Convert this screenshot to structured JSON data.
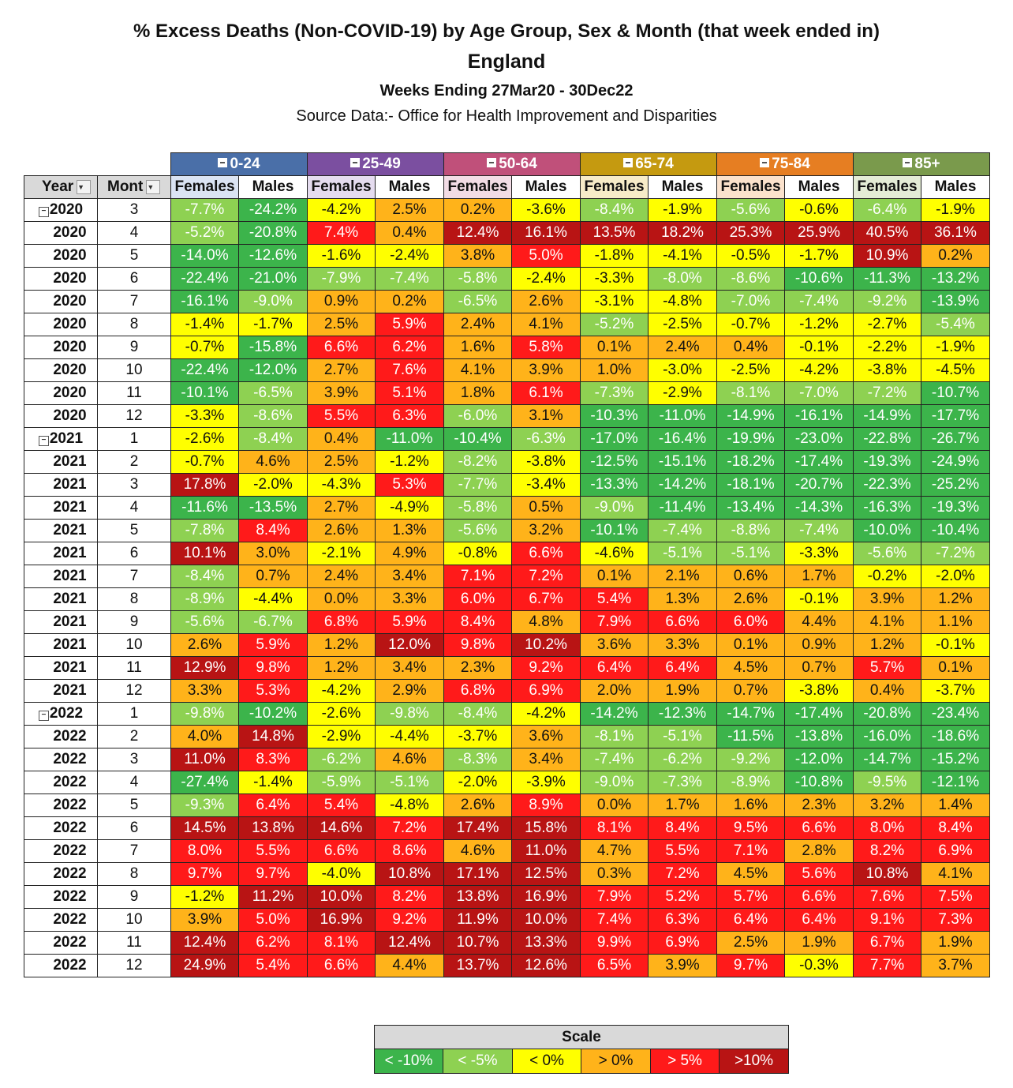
{
  "title": "% Excess Deaths (Non-COVID-19) by Age Group, Sex & Month (that week ended in)",
  "subtitle": "England",
  "period": "Weeks Ending 27Mar20 - 30Dec22",
  "source": "Source Data:- Office for Health Improvement and Disparities",
  "headers": {
    "year": "Year",
    "month": "Mont",
    "females": "Females",
    "males": "Males",
    "age_groups": [
      {
        "label": "0-24",
        "color": "#4a6fa8"
      },
      {
        "label": "25-49",
        "color": "#7b4fa0"
      },
      {
        "label": "50-64",
        "color": "#c0507a"
      },
      {
        "label": "65-74",
        "color": "#c59a10"
      },
      {
        "label": "75-84",
        "color": "#e67e22"
      },
      {
        "label": "85+",
        "color": "#7a9a4c"
      }
    ]
  },
  "scale": {
    "title": "Scale",
    "bins": [
      {
        "label": "< -10%",
        "color": "#3cb44b",
        "text_color": "#ffffff"
      },
      {
        "label": "< -5%",
        "color": "#8ed152",
        "text_color": "#ffffff"
      },
      {
        "label": "< 0%",
        "color": "#ffff00",
        "text_color": "#111111"
      },
      {
        "label": "> 0%",
        "color": "#ffb31a",
        "text_color": "#111111"
      },
      {
        "label": "> 5%",
        "color": "#ff1a1a",
        "text_color": "#ffffff"
      },
      {
        "label": ">10%",
        "color": "#b81414",
        "text_color": "#ffffff"
      }
    ]
  },
  "chart_data": {
    "type": "table",
    "title": "% Excess Deaths (Non-COVID-19) by Age Group, Sex & Month (that week ended in)",
    "columns": [
      "0-24 Females",
      "0-24 Males",
      "25-49 Females",
      "25-49 Males",
      "50-64 Females",
      "50-64 Males",
      "65-74 Females",
      "65-74 Males",
      "75-84 Females",
      "75-84 Males",
      "85+ Females",
      "85+ Males"
    ],
    "rows": [
      {
        "year": "2020",
        "month": "3",
        "group_start": true,
        "values": [
          "-7.7%",
          "-24.2%",
          "-4.2%",
          "2.5%",
          "0.2%",
          "-3.6%",
          "-8.4%",
          "-1.9%",
          "-5.6%",
          "-0.6%",
          "-6.4%",
          "-1.9%"
        ]
      },
      {
        "year": "2020",
        "month": "4",
        "values": [
          "-5.2%",
          "-20.8%",
          "7.4%",
          "0.4%",
          "12.4%",
          "16.1%",
          "13.5%",
          "18.2%",
          "25.3%",
          "25.9%",
          "40.5%",
          "36.1%"
        ]
      },
      {
        "year": "2020",
        "month": "5",
        "values": [
          "-14.0%",
          "-12.6%",
          "-1.6%",
          "-2.4%",
          "3.8%",
          "5.0%",
          "-1.8%",
          "-4.1%",
          "-0.5%",
          "-1.7%",
          "10.9%",
          "0.2%"
        ]
      },
      {
        "year": "2020",
        "month": "6",
        "values": [
          "-22.4%",
          "-21.0%",
          "-7.9%",
          "-7.4%",
          "-5.8%",
          "-2.4%",
          "-3.3%",
          "-8.0%",
          "-8.6%",
          "-10.6%",
          "-11.3%",
          "-13.2%"
        ]
      },
      {
        "year": "2020",
        "month": "7",
        "values": [
          "-16.1%",
          "-9.0%",
          "0.9%",
          "0.2%",
          "-6.5%",
          "2.6%",
          "-3.1%",
          "-4.8%",
          "-7.0%",
          "-7.4%",
          "-9.2%",
          "-13.9%"
        ]
      },
      {
        "year": "2020",
        "month": "8",
        "values": [
          "-1.4%",
          "-1.7%",
          "2.5%",
          "5.9%",
          "2.4%",
          "4.1%",
          "-5.2%",
          "-2.5%",
          "-0.7%",
          "-1.2%",
          "-2.7%",
          "-5.4%"
        ]
      },
      {
        "year": "2020",
        "month": "9",
        "values": [
          "-0.7%",
          "-15.8%",
          "6.6%",
          "6.2%",
          "1.6%",
          "5.8%",
          "0.1%",
          "2.4%",
          "0.4%",
          "-0.1%",
          "-2.2%",
          "-1.9%"
        ]
      },
      {
        "year": "2020",
        "month": "10",
        "values": [
          "-22.4%",
          "-12.0%",
          "2.7%",
          "7.6%",
          "4.1%",
          "3.9%",
          "1.0%",
          "-3.0%",
          "-2.5%",
          "-4.2%",
          "-3.8%",
          "-4.5%"
        ]
      },
      {
        "year": "2020",
        "month": "11",
        "values": [
          "-10.1%",
          "-6.5%",
          "3.9%",
          "5.1%",
          "1.8%",
          "6.1%",
          "-7.3%",
          "-2.9%",
          "-8.1%",
          "-7.0%",
          "-7.2%",
          "-10.7%"
        ]
      },
      {
        "year": "2020",
        "month": "12",
        "values": [
          "-3.3%",
          "-8.6%",
          "5.5%",
          "6.3%",
          "-6.0%",
          "3.1%",
          "-10.3%",
          "-11.0%",
          "-14.9%",
          "-16.1%",
          "-14.9%",
          "-17.7%"
        ]
      },
      {
        "year": "2021",
        "month": "1",
        "group_start": true,
        "values": [
          "-2.6%",
          "-8.4%",
          "0.4%",
          "-11.0%",
          "-10.4%",
          "-6.3%",
          "-17.0%",
          "-16.4%",
          "-19.9%",
          "-23.0%",
          "-22.8%",
          "-26.7%"
        ]
      },
      {
        "year": "2021",
        "month": "2",
        "values": [
          "-0.7%",
          "4.6%",
          "2.5%",
          "-1.2%",
          "-8.2%",
          "-3.8%",
          "-12.5%",
          "-15.1%",
          "-18.2%",
          "-17.4%",
          "-19.3%",
          "-24.9%"
        ]
      },
      {
        "year": "2021",
        "month": "3",
        "values": [
          "17.8%",
          "-2.0%",
          "-4.3%",
          "5.3%",
          "-7.7%",
          "-3.4%",
          "-13.3%",
          "-14.2%",
          "-18.1%",
          "-20.7%",
          "-22.3%",
          "-25.2%"
        ]
      },
      {
        "year": "2021",
        "month": "4",
        "values": [
          "-11.6%",
          "-13.5%",
          "2.7%",
          "-4.9%",
          "-5.8%",
          "0.5%",
          "-9.0%",
          "-11.4%",
          "-13.4%",
          "-14.3%",
          "-16.3%",
          "-19.3%"
        ]
      },
      {
        "year": "2021",
        "month": "5",
        "values": [
          "-7.8%",
          "8.4%",
          "2.6%",
          "1.3%",
          "-5.6%",
          "3.2%",
          "-10.1%",
          "-7.4%",
          "-8.8%",
          "-7.4%",
          "-10.0%",
          "-10.4%"
        ]
      },
      {
        "year": "2021",
        "month": "6",
        "values": [
          "10.1%",
          "3.0%",
          "-2.1%",
          "4.9%",
          "-0.8%",
          "6.6%",
          "-4.6%",
          "-5.1%",
          "-5.1%",
          "-3.3%",
          "-5.6%",
          "-7.2%"
        ]
      },
      {
        "year": "2021",
        "month": "7",
        "values": [
          "-8.4%",
          "0.7%",
          "2.4%",
          "3.4%",
          "7.1%",
          "7.2%",
          "0.1%",
          "2.1%",
          "0.6%",
          "1.7%",
          "-0.2%",
          "-2.0%"
        ]
      },
      {
        "year": "2021",
        "month": "8",
        "values": [
          "-8.9%",
          "-4.4%",
          "0.0%",
          "3.3%",
          "6.0%",
          "6.7%",
          "5.4%",
          "1.3%",
          "2.6%",
          "-0.1%",
          "3.9%",
          "1.2%"
        ]
      },
      {
        "year": "2021",
        "month": "9",
        "values": [
          "-5.6%",
          "-6.7%",
          "6.8%",
          "5.9%",
          "8.4%",
          "4.8%",
          "7.9%",
          "6.6%",
          "6.0%",
          "4.4%",
          "4.1%",
          "1.1%"
        ]
      },
      {
        "year": "2021",
        "month": "10",
        "values": [
          "2.6%",
          "5.9%",
          "1.2%",
          "12.0%",
          "9.8%",
          "10.2%",
          "3.6%",
          "3.3%",
          "0.1%",
          "0.9%",
          "1.2%",
          "-0.1%"
        ]
      },
      {
        "year": "2021",
        "month": "11",
        "values": [
          "12.9%",
          "9.8%",
          "1.2%",
          "3.4%",
          "2.3%",
          "9.2%",
          "6.4%",
          "6.4%",
          "4.5%",
          "0.7%",
          "5.7%",
          "0.1%"
        ]
      },
      {
        "year": "2021",
        "month": "12",
        "values": [
          "3.3%",
          "5.3%",
          "-4.2%",
          "2.9%",
          "6.8%",
          "6.9%",
          "2.0%",
          "1.9%",
          "0.7%",
          "-3.8%",
          "0.4%",
          "-3.7%"
        ]
      },
      {
        "year": "2022",
        "month": "1",
        "group_start": true,
        "values": [
          "-9.8%",
          "-10.2%",
          "-2.6%",
          "-9.8%",
          "-8.4%",
          "-4.2%",
          "-14.2%",
          "-12.3%",
          "-14.7%",
          "-17.4%",
          "-20.8%",
          "-23.4%"
        ]
      },
      {
        "year": "2022",
        "month": "2",
        "values": [
          "4.0%",
          "14.8%",
          "-2.9%",
          "-4.4%",
          "-3.7%",
          "3.6%",
          "-8.1%",
          "-5.1%",
          "-11.5%",
          "-13.8%",
          "-16.0%",
          "-18.6%"
        ]
      },
      {
        "year": "2022",
        "month": "3",
        "values": [
          "11.0%",
          "8.3%",
          "-6.2%",
          "4.6%",
          "-8.3%",
          "3.4%",
          "-7.4%",
          "-6.2%",
          "-9.2%",
          "-12.0%",
          "-14.7%",
          "-15.2%"
        ]
      },
      {
        "year": "2022",
        "month": "4",
        "values": [
          "-27.4%",
          "-1.4%",
          "-5.9%",
          "-5.1%",
          "-2.0%",
          "-3.9%",
          "-9.0%",
          "-7.3%",
          "-8.9%",
          "-10.8%",
          "-9.5%",
          "-12.1%"
        ]
      },
      {
        "year": "2022",
        "month": "5",
        "values": [
          "-9.3%",
          "6.4%",
          "5.4%",
          "-4.8%",
          "2.6%",
          "8.9%",
          "0.0%",
          "1.7%",
          "1.6%",
          "2.3%",
          "3.2%",
          "1.4%"
        ]
      },
      {
        "year": "2022",
        "month": "6",
        "values": [
          "14.5%",
          "13.8%",
          "14.6%",
          "7.2%",
          "17.4%",
          "15.8%",
          "8.1%",
          "8.4%",
          "9.5%",
          "6.6%",
          "8.0%",
          "8.4%"
        ]
      },
      {
        "year": "2022",
        "month": "7",
        "values": [
          "8.0%",
          "5.5%",
          "6.6%",
          "8.6%",
          "4.6%",
          "11.0%",
          "4.7%",
          "5.5%",
          "7.1%",
          "2.8%",
          "8.2%",
          "6.9%"
        ]
      },
      {
        "year": "2022",
        "month": "8",
        "values": [
          "9.7%",
          "9.7%",
          "-4.0%",
          "10.8%",
          "17.1%",
          "12.5%",
          "0.3%",
          "7.2%",
          "4.5%",
          "5.6%",
          "10.8%",
          "4.1%"
        ]
      },
      {
        "year": "2022",
        "month": "9",
        "values": [
          "-1.2%",
          "11.2%",
          "10.0%",
          "8.2%",
          "13.8%",
          "16.9%",
          "7.9%",
          "5.2%",
          "5.7%",
          "6.6%",
          "7.6%",
          "7.5%"
        ]
      },
      {
        "year": "2022",
        "month": "10",
        "values": [
          "3.9%",
          "5.0%",
          "16.9%",
          "9.2%",
          "11.9%",
          "10.0%",
          "7.4%",
          "6.3%",
          "6.4%",
          "6.4%",
          "9.1%",
          "7.3%"
        ]
      },
      {
        "year": "2022",
        "month": "11",
        "values": [
          "12.4%",
          "6.2%",
          "8.1%",
          "12.4%",
          "10.7%",
          "13.3%",
          "9.9%",
          "6.9%",
          "2.5%",
          "1.9%",
          "6.7%",
          "1.9%"
        ]
      },
      {
        "year": "2022",
        "month": "12",
        "values": [
          "24.9%",
          "5.4%",
          "6.6%",
          "4.4%",
          "13.7%",
          "12.6%",
          "6.5%",
          "3.9%",
          "9.7%",
          "-0.3%",
          "7.7%",
          "3.7%"
        ]
      }
    ]
  }
}
